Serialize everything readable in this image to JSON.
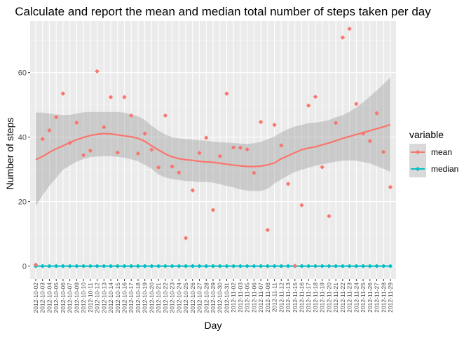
{
  "chart_data": {
    "type": "scatter",
    "title": "Calculate and report the mean and median total number of steps taken per day",
    "xlabel": "Day",
    "ylabel": "Number of steps",
    "ylim": [
      -4,
      76
    ],
    "yticks": [
      0,
      20,
      40,
      60
    ],
    "grid": true,
    "legend": {
      "title": "variable",
      "position": "right"
    },
    "categories": [
      "2012-10-02",
      "2012-10-03",
      "2012-10-04",
      "2012-10-05",
      "2012-10-06",
      "2012-10-07",
      "2012-10-09",
      "2012-10-10",
      "2012-10-11",
      "2012-10-12",
      "2012-10-13",
      "2012-10-14",
      "2012-10-15",
      "2012-10-16",
      "2012-10-17",
      "2012-10-18",
      "2012-10-19",
      "2012-10-20",
      "2012-10-21",
      "2012-10-22",
      "2012-10-23",
      "2012-10-24",
      "2012-10-25",
      "2012-10-26",
      "2012-10-27",
      "2012-10-28",
      "2012-10-29",
      "2012-10-30",
      "2012-10-31",
      "2012-11-02",
      "2012-11-03",
      "2012-11-05",
      "2012-11-06",
      "2012-11-07",
      "2012-11-08",
      "2012-11-11",
      "2012-11-12",
      "2012-11-13",
      "2012-11-15",
      "2012-11-16",
      "2012-11-17",
      "2012-11-18",
      "2012-11-19",
      "2012-11-20",
      "2012-11-21",
      "2012-11-22",
      "2012-11-23",
      "2012-11-24",
      "2012-11-25",
      "2012-11-26",
      "2012-11-27",
      "2012-11-28",
      "2012-11-29"
    ],
    "series": [
      {
        "name": "mean",
        "color": "#f8766d",
        "values": [
          0.4,
          39.4,
          42.1,
          46.2,
          53.5,
          38.2,
          44.5,
          34.4,
          35.8,
          60.4,
          43.1,
          52.4,
          35.2,
          52.4,
          46.7,
          34.9,
          41.1,
          36.1,
          30.6,
          46.7,
          30.9,
          29.0,
          8.7,
          23.5,
          35.1,
          39.8,
          17.4,
          34.1,
          53.5,
          36.8,
          36.7,
          36.2,
          28.9,
          44.7,
          11.2,
          43.8,
          37.4,
          25.5,
          0.1,
          18.9,
          49.8,
          52.5,
          30.7,
          15.5,
          44.4,
          70.9,
          73.6,
          50.3,
          41.1,
          38.8,
          47.4,
          35.4,
          24.5
        ],
        "smooth": [
          33.0,
          34.0,
          35.3,
          36.4,
          37.3,
          38.3,
          39.2,
          39.9,
          40.5,
          40.9,
          41.1,
          41.0,
          40.7,
          40.4,
          40.1,
          39.6,
          38.7,
          37.3,
          36.0,
          34.8,
          33.9,
          33.3,
          33.0,
          32.8,
          32.5,
          32.3,
          32.2,
          31.9,
          31.6,
          31.3,
          31.1,
          30.9,
          30.9,
          31.0,
          31.4,
          32.0,
          33.3,
          34.2,
          35.2,
          36.1,
          36.6,
          37.0,
          37.6,
          38.2,
          38.9,
          39.6,
          40.2,
          40.8,
          41.4,
          42.0,
          42.6,
          43.2,
          43.9
        ],
        "band_upper": [
          47.6,
          47.6,
          47.3,
          47.0,
          46.8,
          46.9,
          47.3,
          47.7,
          47.8,
          47.8,
          47.8,
          47.8,
          47.8,
          47.6,
          47.0,
          46.5,
          45.3,
          43.5,
          42.0,
          40.8,
          40.0,
          39.6,
          39.4,
          39.2,
          39.0,
          38.9,
          38.6,
          38.4,
          38.3,
          38.2,
          38.0,
          37.9,
          38.1,
          38.5,
          39.3,
          40.2,
          41.5,
          42.5,
          43.3,
          43.8,
          44.3,
          44.5,
          44.8,
          45.3,
          46.2,
          46.8,
          47.9,
          49.2,
          50.8,
          52.6,
          54.5,
          56.5,
          58.5
        ],
        "band_lower": [
          18.5,
          22.0,
          24.9,
          27.4,
          29.9,
          31.2,
          32.4,
          33.2,
          33.8,
          34.0,
          34.1,
          34.1,
          33.9,
          33.6,
          33.1,
          32.5,
          31.4,
          30.2,
          28.4,
          27.5,
          27.0,
          26.7,
          26.4,
          26.3,
          26.1,
          26.1,
          25.9,
          25.4,
          24.9,
          24.4,
          23.8,
          23.4,
          23.3,
          23.3,
          24.0,
          25.6,
          26.9,
          28.1,
          29.2,
          29.9,
          30.5,
          31.1,
          31.6,
          32.0,
          32.4,
          32.7,
          32.8,
          32.7,
          32.3,
          31.8,
          31.0,
          30.2,
          29.2
        ]
      },
      {
        "name": "median",
        "color": "#00bfc4",
        "values": [
          0,
          0,
          0,
          0,
          0,
          0,
          0,
          0,
          0,
          0,
          0,
          0,
          0,
          0,
          0,
          0,
          0,
          0,
          0,
          0,
          0,
          0,
          0,
          0,
          0,
          0,
          0,
          0,
          0,
          0,
          0,
          0,
          0,
          0,
          0,
          0,
          0,
          0,
          0,
          0,
          0,
          0,
          0,
          0,
          0,
          0,
          0,
          0,
          0,
          0,
          0,
          0,
          0
        ]
      }
    ]
  }
}
